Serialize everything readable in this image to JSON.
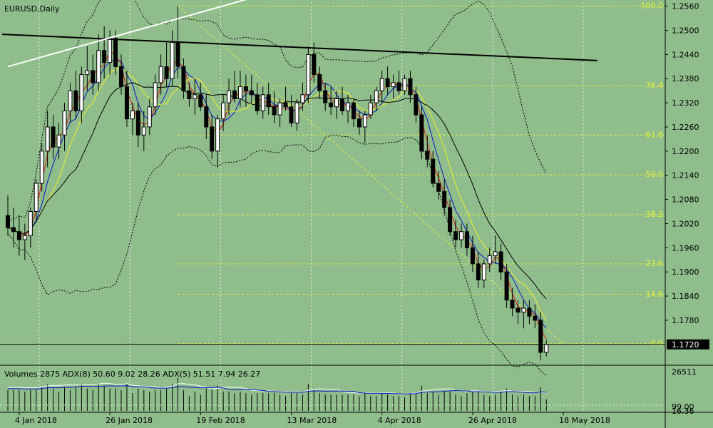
{
  "chart_data": {
    "type": "candlestick",
    "symbol_label": "EURUSD,Daily",
    "y_axis": {
      "ticks": [
        "1.2560",
        "1.2500",
        "1.2440",
        "1.2380",
        "1.2320",
        "1.2260",
        "1.2200",
        "1.2140",
        "1.2080",
        "1.2020",
        "1.1960",
        "1.1900",
        "1.1840",
        "1.1780"
      ],
      "range": [
        1.167,
        1.257
      ]
    },
    "current_price_label": "1.1720",
    "current_price": 1.172,
    "x_axis": {
      "ticks": [
        {
          "label": "4 Jan 2018",
          "index": 2
        },
        {
          "label": "26 Jan 2018",
          "index": 18
        },
        {
          "label": "19 Feb 2018",
          "index": 34
        },
        {
          "label": "13 Mar 2018",
          "index": 50
        },
        {
          "label": "4 Apr 2018",
          "index": 66
        },
        {
          "label": "26 Apr 2018",
          "index": 82
        },
        {
          "label": "18 May 2018",
          "index": 98
        }
      ]
    },
    "candles": [
      [
        1.204,
        1.209,
        1.199,
        1.201
      ],
      [
        1.201,
        1.206,
        1.196,
        1.2
      ],
      [
        1.2,
        1.204,
        1.194,
        1.198
      ],
      [
        1.198,
        1.202,
        1.193,
        1.199
      ],
      [
        1.199,
        1.206,
        1.196,
        1.205
      ],
      [
        1.205,
        1.213,
        1.203,
        1.212
      ],
      [
        1.212,
        1.222,
        1.21,
        1.22
      ],
      [
        1.22,
        1.23,
        1.216,
        1.226
      ],
      [
        1.226,
        1.229,
        1.218,
        1.221
      ],
      [
        1.221,
        1.227,
        1.218,
        1.224
      ],
      [
        1.224,
        1.232,
        1.22,
        1.23
      ],
      [
        1.23,
        1.237,
        1.227,
        1.235
      ],
      [
        1.235,
        1.24,
        1.228,
        1.23
      ],
      [
        1.23,
        1.241,
        1.227,
        1.239
      ],
      [
        1.239,
        1.246,
        1.235,
        1.24
      ],
      [
        1.24,
        1.244,
        1.234,
        1.237
      ],
      [
        1.237,
        1.249,
        1.235,
        1.245
      ],
      [
        1.245,
        1.251,
        1.238,
        1.242
      ],
      [
        1.242,
        1.25,
        1.239,
        1.248
      ],
      [
        1.248,
        1.25,
        1.239,
        1.241
      ],
      [
        1.241,
        1.244,
        1.234,
        1.236
      ],
      [
        1.236,
        1.24,
        1.226,
        1.228
      ],
      [
        1.228,
        1.232,
        1.224,
        1.23
      ],
      [
        1.23,
        1.232,
        1.221,
        1.224
      ],
      [
        1.224,
        1.23,
        1.22,
        1.226
      ],
      [
        1.226,
        1.233,
        1.224,
        1.231
      ],
      [
        1.231,
        1.239,
        1.229,
        1.237
      ],
      [
        1.237,
        1.244,
        1.234,
        1.241
      ],
      [
        1.241,
        1.247,
        1.236,
        1.238
      ],
      [
        1.238,
        1.25,
        1.236,
        1.247
      ],
      [
        1.247,
        1.256,
        1.238,
        1.241
      ],
      [
        1.241,
        1.243,
        1.233,
        1.235
      ],
      [
        1.235,
        1.237,
        1.231,
        1.233
      ],
      [
        1.233,
        1.238,
        1.229,
        1.234
      ],
      [
        1.234,
        1.237,
        1.23,
        1.231
      ],
      [
        1.231,
        1.234,
        1.223,
        1.226
      ],
      [
        1.226,
        1.229,
        1.218,
        1.22
      ],
      [
        1.22,
        1.229,
        1.216,
        1.228
      ],
      [
        1.228,
        1.234,
        1.225,
        1.232
      ],
      [
        1.232,
        1.238,
        1.229,
        1.235
      ],
      [
        1.235,
        1.24,
        1.232,
        1.233
      ],
      [
        1.233,
        1.24,
        1.231,
        1.236
      ],
      [
        1.236,
        1.239,
        1.231,
        1.235
      ],
      [
        1.235,
        1.239,
        1.232,
        1.234
      ],
      [
        1.234,
        1.237,
        1.229,
        1.23
      ],
      [
        1.23,
        1.236,
        1.228,
        1.234
      ],
      [
        1.234,
        1.237,
        1.229,
        1.231
      ],
      [
        1.231,
        1.235,
        1.227,
        1.229
      ],
      [
        1.229,
        1.233,
        1.226,
        1.232
      ],
      [
        1.232,
        1.236,
        1.23,
        1.231
      ],
      [
        1.231,
        1.234,
        1.226,
        1.227
      ],
      [
        1.227,
        1.233,
        1.225,
        1.232
      ],
      [
        1.232,
        1.237,
        1.23,
        1.234
      ],
      [
        1.234,
        1.246,
        1.232,
        1.244
      ],
      [
        1.244,
        1.247,
        1.237,
        1.239
      ],
      [
        1.239,
        1.241,
        1.233,
        1.235
      ],
      [
        1.235,
        1.237,
        1.23,
        1.232
      ],
      [
        1.232,
        1.236,
        1.229,
        1.231
      ],
      [
        1.231,
        1.235,
        1.228,
        1.233
      ],
      [
        1.233,
        1.236,
        1.229,
        1.23
      ],
      [
        1.23,
        1.234,
        1.227,
        1.232
      ],
      [
        1.232,
        1.233,
        1.226,
        1.228
      ],
      [
        1.228,
        1.23,
        1.224,
        1.226
      ],
      [
        1.226,
        1.23,
        1.222,
        1.229
      ],
      [
        1.229,
        1.234,
        1.228,
        1.232
      ],
      [
        1.232,
        1.236,
        1.23,
        1.235
      ],
      [
        1.235,
        1.24,
        1.232,
        1.238
      ],
      [
        1.238,
        1.241,
        1.234,
        1.236
      ],
      [
        1.236,
        1.239,
        1.233,
        1.237
      ],
      [
        1.237,
        1.24,
        1.234,
        1.235
      ],
      [
        1.235,
        1.239,
        1.234,
        1.238
      ],
      [
        1.238,
        1.24,
        1.232,
        1.234
      ],
      [
        1.234,
        1.236,
        1.227,
        1.229
      ],
      [
        1.229,
        1.231,
        1.218,
        1.22
      ],
      [
        1.22,
        1.224,
        1.216,
        1.218
      ],
      [
        1.218,
        1.22,
        1.211,
        1.212
      ],
      [
        1.212,
        1.215,
        1.208,
        1.21
      ],
      [
        1.21,
        1.213,
        1.204,
        1.206
      ],
      [
        1.206,
        1.208,
        1.199,
        1.2
      ],
      [
        1.2,
        1.203,
        1.196,
        1.198
      ],
      [
        1.198,
        1.202,
        1.196,
        1.2
      ],
      [
        1.2,
        1.202,
        1.194,
        1.196
      ],
      [
        1.196,
        1.199,
        1.19,
        1.192
      ],
      [
        1.192,
        1.195,
        1.186,
        1.188
      ],
      [
        1.188,
        1.193,
        1.186,
        1.192
      ],
      [
        1.192,
        1.196,
        1.19,
        1.194
      ],
      [
        1.194,
        1.199,
        1.192,
        1.195
      ],
      [
        1.195,
        1.197,
        1.188,
        1.19
      ],
      [
        1.19,
        1.192,
        1.181,
        1.183
      ],
      [
        1.183,
        1.186,
        1.179,
        1.181
      ],
      [
        1.181,
        1.183,
        1.177,
        1.18
      ],
      [
        1.18,
        1.183,
        1.176,
        1.181
      ],
      [
        1.181,
        1.183,
        1.177,
        1.179
      ],
      [
        1.179,
        1.182,
        1.176,
        1.178
      ],
      [
        1.178,
        1.18,
        1.168,
        1.17
      ],
      [
        1.17,
        1.173,
        1.169,
        1.172
      ]
    ],
    "moving_averages": [
      {
        "color": "#d81b0c",
        "period": 3
      },
      {
        "color": "#0a16c8",
        "period": 5
      },
      {
        "color": "#f0f028",
        "period": 8
      },
      {
        "color": "#000000",
        "period": 13
      }
    ],
    "fibonacci": [
      {
        "label": "100.0",
        "price": 1.256
      },
      {
        "label": "76.4",
        "price": 1.2362
      },
      {
        "label": "61.8",
        "price": 1.224
      },
      {
        "label": "50.0",
        "price": 1.2141
      },
      {
        "label": "38.2",
        "price": 1.2042
      },
      {
        "label": "23.6",
        "price": 1.192
      },
      {
        "label": "14.6",
        "price": 1.1844
      },
      {
        "label": "0.0",
        "price": 1.1722
      }
    ],
    "trendlines": [
      {
        "color": "#000000",
        "from": [
          -1,
          1.249
        ],
        "to": [
          104,
          1.2425
        ]
      },
      {
        "color": "#ffffff",
        "from": [
          0,
          1.241
        ],
        "to": [
          53,
          1.262
        ]
      }
    ],
    "indicator": {
      "label": "Volumes 2875 ADX(8) 50.60 9.02 28.26 ADX(5) 51.51 7.94 26.27",
      "ticks": [
        "26511",
        "99.00",
        "16.36"
      ]
    }
  }
}
